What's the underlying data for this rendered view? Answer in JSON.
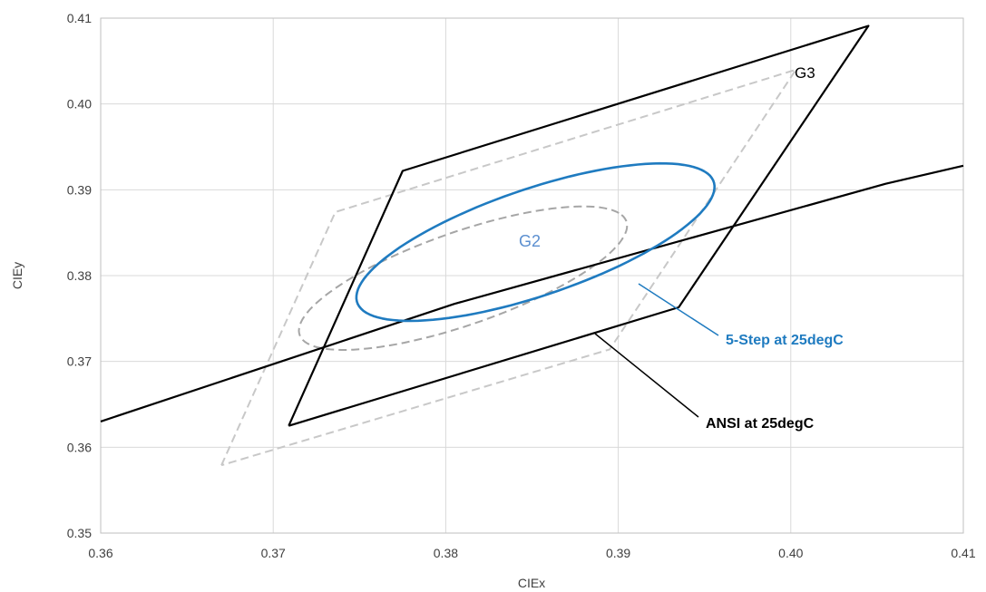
{
  "chart_data": {
    "type": "scatter",
    "xlabel": "CIEx",
    "ylabel": "CIEy",
    "xlim": [
      0.36,
      0.41
    ],
    "ylim": [
      0.35,
      0.41
    ],
    "xticks": [
      "0.36",
      "0.37",
      "0.38",
      "0.39",
      "0.40",
      "0.41"
    ],
    "yticks": [
      "0.35",
      "0.36",
      "0.37",
      "0.38",
      "0.39",
      "0.40",
      "0.41"
    ],
    "grid": true,
    "series": [
      {
        "style": "solid-black",
        "color": "#000000",
        "x": [
          0.3709,
          0.3775,
          0.4045,
          0.3935,
          0.3709
        ],
        "y": [
          0.3625,
          0.3922,
          0.4091,
          0.3763,
          0.3625
        ]
      },
      {
        "style": "solid-black",
        "color": "#000000",
        "x": [
          0.36,
          0.3805,
          0.4055,
          0.41
        ],
        "y": [
          0.363,
          0.3767,
          0.3907,
          0.3928
        ]
      },
      {
        "style": "dashed-lightgray",
        "color": "#c8c8c8",
        "x": [
          0.367,
          0.3736,
          0.4003,
          0.3895,
          0.367
        ],
        "y": [
          0.3579,
          0.3874,
          0.404,
          0.3714,
          0.3579
        ]
      },
      {
        "style": "dashed-gray-ellipse",
        "color": "#a6a6a6",
        "center": [
          0.381,
          0.3797
        ],
        "semi_axes": [
          0.0118,
          0.0046
        ],
        "rotation_deg": 40
      },
      {
        "style": "solid-blue-ellipse",
        "color": "#1f7bc0",
        "center": [
          0.3852,
          0.3839
        ],
        "semi_axes": [
          0.0128,
          0.0053
        ],
        "rotation_deg": 40
      }
    ],
    "annotations": {
      "g3": "G3",
      "g2": "G2",
      "five_step": "5-Step at 25degC",
      "ansi": "ANSI at 25degC"
    },
    "colors": {
      "ansi": "#000000",
      "five_step": "#1f7bc0",
      "g2_label": "#5b8fd0",
      "gray_dashed": "#c8c8c8",
      "gray_ellipse": "#a6a6a6"
    }
  }
}
